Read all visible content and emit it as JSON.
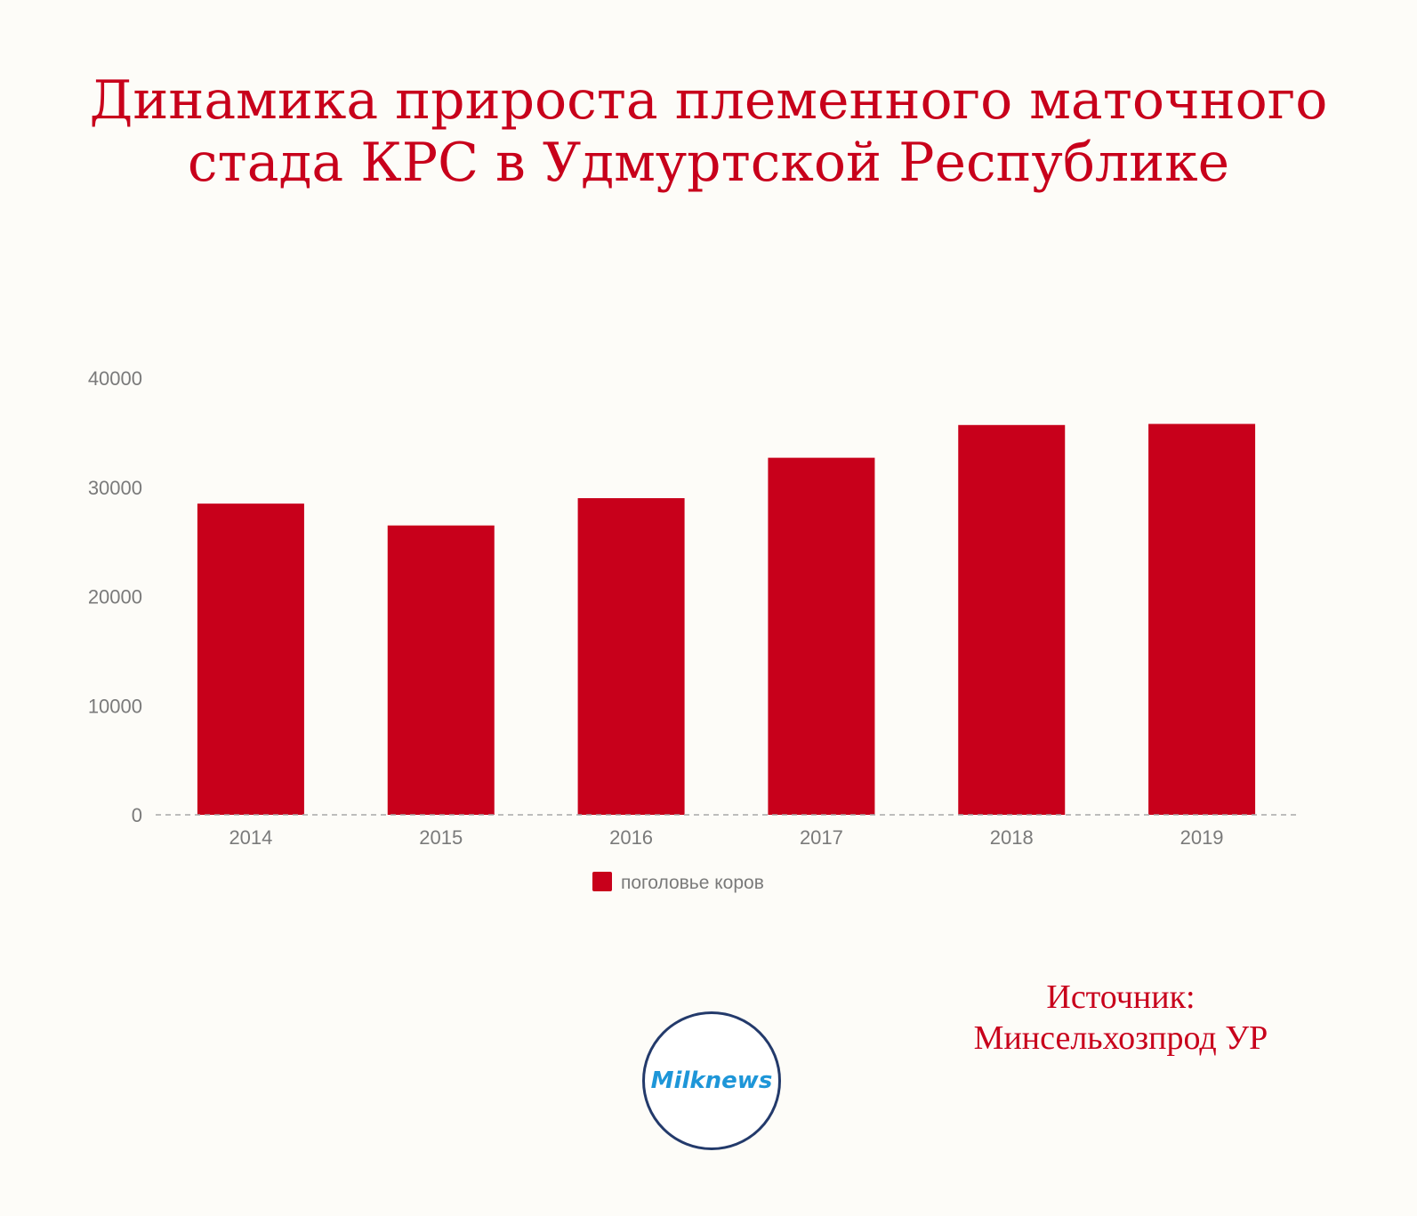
{
  "title_lines": [
    "Динамика прироста племенного маточного",
    "стада КРС в Удмуртской Республике"
  ],
  "source_lines": [
    "Источник:",
    "Минсельхозпрод УР"
  ],
  "logo_text": "Milknews",
  "colors": {
    "accent": "#c8001b",
    "axis_text": "#7a7a7a",
    "logo_ring": "#233a6b",
    "logo_text": "#1e96d8"
  },
  "chart_data": {
    "type": "bar",
    "categories": [
      "2014",
      "2015",
      "2016",
      "2017",
      "2018",
      "2019"
    ],
    "series": [
      {
        "name": "поголовье коров",
        "values": [
          28500,
          26500,
          29000,
          32700,
          35700,
          35800
        ]
      }
    ],
    "ylim": [
      0,
      40000
    ],
    "yticks": [
      0,
      10000,
      20000,
      30000,
      40000
    ],
    "grid": false,
    "legend": "bottom-center"
  }
}
